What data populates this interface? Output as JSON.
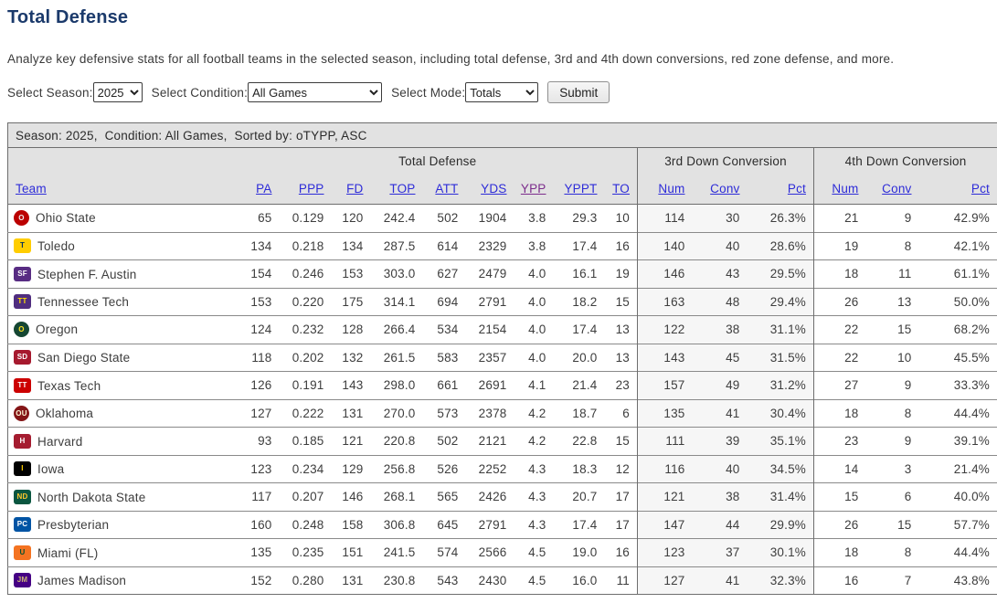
{
  "page": {
    "title": "Total Defense",
    "description": "Analyze key defensive stats for all football teams in the selected season, including total defense, 3rd and 4th down conversions, red zone defense, and more."
  },
  "controls": {
    "season_label": "Select Season:",
    "season_value": "2025",
    "condition_label": "Select Condition:",
    "condition_value": "All Games",
    "mode_label": "Select Mode:",
    "mode_value": "Totals",
    "submit_label": "Submit"
  },
  "colors": {
    "title_navy": "#1b3a6b",
    "link_blue": "#2e2cd8",
    "link_visited_purple": "#7c2d8c",
    "header_bg": "#e2e2e2",
    "third_down_col_bg": "#f6f6f6"
  },
  "table": {
    "caption": "Season: 2025,  Condition: All Games,  Sorted by: oTYPP, ASC",
    "group_headers": {
      "total_defense": "Total Defense",
      "third_down": "3rd Down Conversion",
      "fourth_down": "4th Down Conversion"
    },
    "team_column": "Team",
    "stat_columns": [
      "PA",
      "PPP",
      "FD",
      "TOP",
      "ATT",
      "YDS",
      "YPP",
      "YPPT",
      "TO"
    ],
    "conv_columns": [
      "Num",
      "Conv",
      "Pct"
    ],
    "sorted_column": "YPP",
    "rows": [
      {
        "team": "Ohio State",
        "logo": {
          "name": "ohio-state-logo-icon",
          "text": "O",
          "bg": "#bb0000",
          "fg": "#eeeeee",
          "shape": "circle"
        },
        "stats": [
          "65",
          "0.129",
          "120",
          "242.4",
          "502",
          "1904",
          "3.8",
          "29.3",
          "10"
        ],
        "third": [
          "114",
          "30",
          "26.3%"
        ],
        "fourth": [
          "21",
          "9",
          "42.9%"
        ]
      },
      {
        "team": "Toledo",
        "logo": {
          "name": "toledo-logo-icon",
          "text": "T",
          "bg": "#ffcd00",
          "fg": "#00305e",
          "shape": "square"
        },
        "stats": [
          "134",
          "0.218",
          "134",
          "287.5",
          "614",
          "2329",
          "3.8",
          "17.4",
          "16"
        ],
        "third": [
          "140",
          "40",
          "28.6%"
        ],
        "fourth": [
          "19",
          "8",
          "42.1%"
        ]
      },
      {
        "team": "Stephen F. Austin",
        "logo": {
          "name": "stephen-f-austin-logo-icon",
          "text": "SF",
          "bg": "#582c83",
          "fg": "#ffffff",
          "shape": "square"
        },
        "stats": [
          "154",
          "0.246",
          "153",
          "303.0",
          "627",
          "2479",
          "4.0",
          "16.1",
          "19"
        ],
        "third": [
          "146",
          "43",
          "29.5%"
        ],
        "fourth": [
          "18",
          "11",
          "61.1%"
        ]
      },
      {
        "team": "Tennessee Tech",
        "logo": {
          "name": "tennessee-tech-logo-icon",
          "text": "TT",
          "bg": "#4f2d7f",
          "fg": "#ffdd00",
          "shape": "square"
        },
        "stats": [
          "153",
          "0.220",
          "175",
          "314.1",
          "694",
          "2791",
          "4.0",
          "18.2",
          "15"
        ],
        "third": [
          "163",
          "48",
          "29.4%"
        ],
        "fourth": [
          "26",
          "13",
          "50.0%"
        ]
      },
      {
        "team": "Oregon",
        "logo": {
          "name": "oregon-logo-icon",
          "text": "O",
          "bg": "#154733",
          "fg": "#fee123",
          "shape": "circle"
        },
        "stats": [
          "124",
          "0.232",
          "128",
          "266.4",
          "534",
          "2154",
          "4.0",
          "17.4",
          "13"
        ],
        "third": [
          "122",
          "38",
          "31.1%"
        ],
        "fourth": [
          "22",
          "15",
          "68.2%"
        ]
      },
      {
        "team": "San Diego State",
        "logo": {
          "name": "san-diego-state-logo-icon",
          "text": "SD",
          "bg": "#a6192e",
          "fg": "#ffffff",
          "shape": "square"
        },
        "stats": [
          "118",
          "0.202",
          "132",
          "261.5",
          "583",
          "2357",
          "4.0",
          "20.0",
          "13"
        ],
        "third": [
          "143",
          "45",
          "31.5%"
        ],
        "fourth": [
          "22",
          "10",
          "45.5%"
        ]
      },
      {
        "team": "Texas Tech",
        "logo": {
          "name": "texas-tech-logo-icon",
          "text": "TT",
          "bg": "#cc0000",
          "fg": "#ffffff",
          "shape": "square"
        },
        "stats": [
          "126",
          "0.191",
          "143",
          "298.0",
          "661",
          "2691",
          "4.1",
          "21.4",
          "23"
        ],
        "third": [
          "157",
          "49",
          "31.2%"
        ],
        "fourth": [
          "27",
          "9",
          "33.3%"
        ]
      },
      {
        "team": "Oklahoma",
        "logo": {
          "name": "oklahoma-logo-icon",
          "text": "OU",
          "bg": "#841617",
          "fg": "#fdf9d8",
          "shape": "circle"
        },
        "stats": [
          "127",
          "0.222",
          "131",
          "270.0",
          "573",
          "2378",
          "4.2",
          "18.7",
          "6"
        ],
        "third": [
          "135",
          "41",
          "30.4%"
        ],
        "fourth": [
          "18",
          "8",
          "44.4%"
        ]
      },
      {
        "team": "Harvard",
        "logo": {
          "name": "harvard-logo-icon",
          "text": "H",
          "bg": "#a51c30",
          "fg": "#ffffff",
          "shape": "square"
        },
        "stats": [
          "93",
          "0.185",
          "121",
          "220.8",
          "502",
          "2121",
          "4.2",
          "22.8",
          "15"
        ],
        "third": [
          "111",
          "39",
          "35.1%"
        ],
        "fourth": [
          "23",
          "9",
          "39.1%"
        ]
      },
      {
        "team": "Iowa",
        "logo": {
          "name": "iowa-logo-icon",
          "text": "I",
          "bg": "#000000",
          "fg": "#ffcd00",
          "shape": "square"
        },
        "stats": [
          "123",
          "0.234",
          "129",
          "256.8",
          "526",
          "2252",
          "4.3",
          "18.3",
          "12"
        ],
        "third": [
          "116",
          "40",
          "34.5%"
        ],
        "fourth": [
          "14",
          "3",
          "21.4%"
        ]
      },
      {
        "team": "North Dakota State",
        "logo": {
          "name": "north-dakota-state-logo-icon",
          "text": "ND",
          "bg": "#0a5640",
          "fg": "#ffc72c",
          "shape": "square"
        },
        "stats": [
          "117",
          "0.207",
          "146",
          "268.1",
          "565",
          "2426",
          "4.3",
          "20.7",
          "17"
        ],
        "third": [
          "121",
          "38",
          "31.4%"
        ],
        "fourth": [
          "15",
          "6",
          "40.0%"
        ]
      },
      {
        "team": "Presbyterian",
        "logo": {
          "name": "presbyterian-logo-icon",
          "text": "PC",
          "bg": "#0054a4",
          "fg": "#ffffff",
          "shape": "square"
        },
        "stats": [
          "160",
          "0.248",
          "158",
          "306.8",
          "645",
          "2791",
          "4.3",
          "17.4",
          "17"
        ],
        "third": [
          "147",
          "44",
          "29.9%"
        ],
        "fourth": [
          "26",
          "15",
          "57.7%"
        ]
      },
      {
        "team": "Miami (FL)",
        "logo": {
          "name": "miami-fl-logo-icon",
          "text": "U",
          "bg": "#f47321",
          "fg": "#005030",
          "shape": "square"
        },
        "stats": [
          "135",
          "0.235",
          "151",
          "241.5",
          "574",
          "2566",
          "4.5",
          "19.0",
          "16"
        ],
        "third": [
          "123",
          "37",
          "30.1%"
        ],
        "fourth": [
          "18",
          "8",
          "44.4%"
        ]
      },
      {
        "team": "James Madison",
        "logo": {
          "name": "james-madison-logo-icon",
          "text": "JM",
          "bg": "#450084",
          "fg": "#cbb677",
          "shape": "square"
        },
        "stats": [
          "152",
          "0.280",
          "131",
          "230.8",
          "543",
          "2430",
          "4.5",
          "16.0",
          "11"
        ],
        "third": [
          "127",
          "41",
          "32.3%"
        ],
        "fourth": [
          "16",
          "7",
          "43.8%"
        ]
      }
    ]
  }
}
